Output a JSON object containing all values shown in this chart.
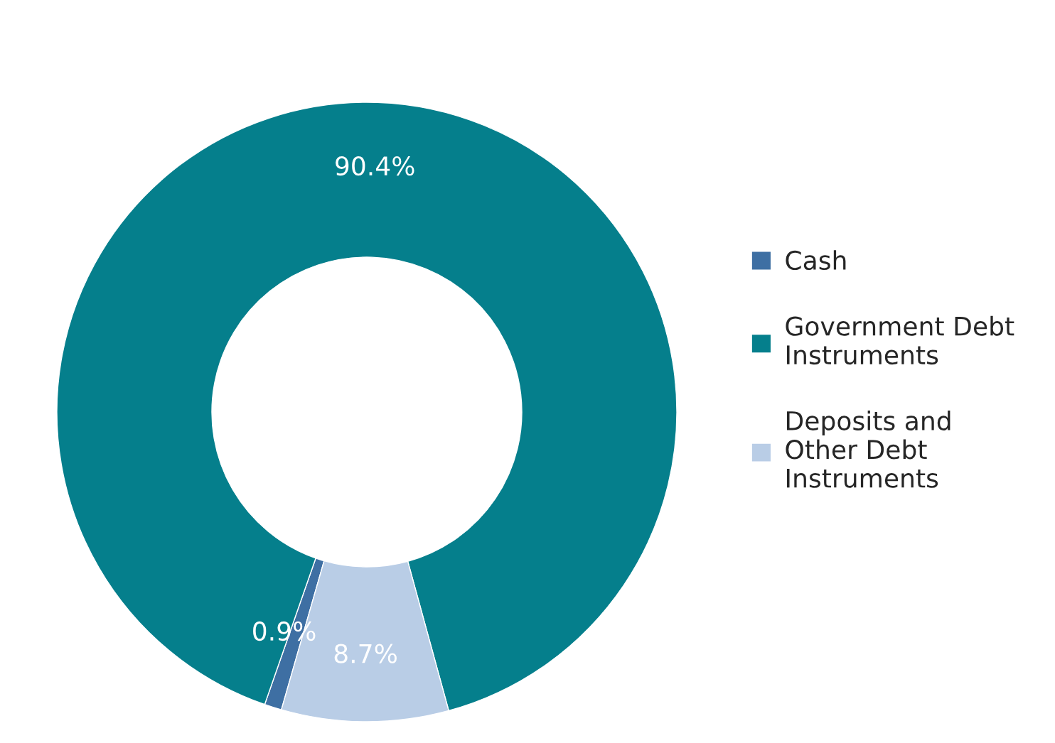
{
  "chart_data": {
    "type": "donut",
    "categories": [
      "Cash",
      "Government Debt Instruments",
      "Deposits and Other Debt Instruments"
    ],
    "values": [
      0.9,
      90.4,
      8.7
    ],
    "colors": [
      "#3e6fa3",
      "#057f8c",
      "#b9cde6"
    ],
    "value_labels": [
      "0.9%",
      "90.4%",
      "8.7%"
    ],
    "legend": "right"
  }
}
